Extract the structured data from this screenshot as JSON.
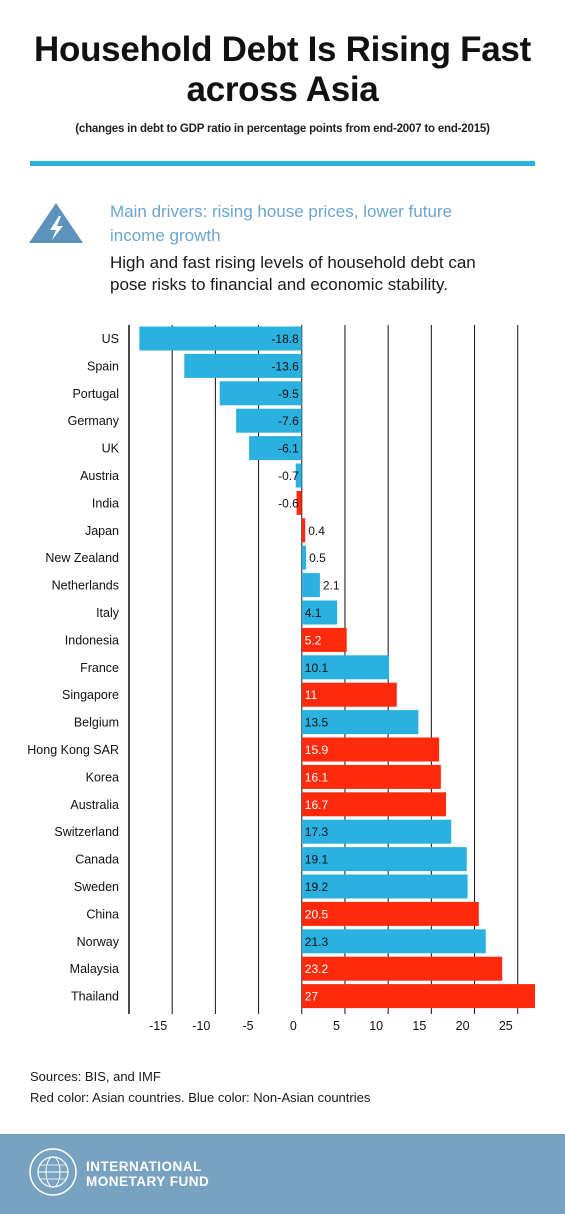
{
  "header": {
    "title_line1": "Household Debt Is Rising Fast",
    "title_line2": "across Asia",
    "subtitle": "(changes in debt to GDP ratio in percentage points from end-2007 to end-2015)"
  },
  "callout": {
    "icon": "warning-lightning-icon",
    "driver_line1": "Main drivers: rising house prices, lower future",
    "driver_line2": "income growth",
    "desc_line1": "High and fast rising levels of household debt  can",
    "desc_line2": "pose risks to financial and economic stability."
  },
  "colors": {
    "accent": "#2ab1e0",
    "asian": "#ff2a0c",
    "non_asian": "#2ab1e0",
    "driver_text": "#6ba6cf",
    "footer": "#77a3c0"
  },
  "chart_data": {
    "type": "bar",
    "orientation": "horizontal",
    "categories": [
      "US",
      "Spain",
      "Portugal",
      "Germany",
      "UK",
      "Austria",
      "India",
      "Japan",
      "New Zealand",
      "Netherlands",
      "Italy",
      "Indonesia",
      "France",
      "Singapore",
      "Belgium",
      "Hong Kong SAR",
      "Korea",
      "Australia",
      "Switzerland",
      "Canada",
      "Sweden",
      "China",
      "Norway",
      "Malaysia",
      "Thailand"
    ],
    "values": [
      -18.8,
      -13.6,
      -9.5,
      -7.6,
      -6.1,
      -0.7,
      -0.6,
      0.4,
      0.5,
      2.1,
      4.1,
      5.2,
      10.1,
      11,
      13.5,
      15.9,
      16.1,
      16.7,
      17.3,
      19.1,
      19.2,
      20.5,
      21.3,
      23.2,
      27
    ],
    "value_labels": [
      "-18.8",
      "-13.6",
      "-9.5",
      "-7.6",
      "-6.1",
      "-0.7",
      "-0.6",
      "0.4",
      "0.5",
      "2.1",
      "4.1",
      "5.2",
      "10.1",
      "11",
      "13.5",
      "15.9",
      "16.1",
      "16.7",
      "17.3",
      "19.1",
      "19.2",
      "20.5",
      "21.3",
      "23.2",
      "27"
    ],
    "group": [
      "non-asian",
      "non-asian",
      "non-asian",
      "non-asian",
      "non-asian",
      "non-asian",
      "asian",
      "asian",
      "non-asian",
      "non-asian",
      "non-asian",
      "asian",
      "non-asian",
      "asian",
      "non-asian",
      "asian",
      "asian",
      "asian",
      "non-asian",
      "non-asian",
      "non-asian",
      "asian",
      "non-asian",
      "asian",
      "asian"
    ],
    "xticks": [
      -15,
      -10,
      -5,
      0,
      5,
      10,
      15,
      20,
      25
    ],
    "xlim": [
      -20,
      27
    ],
    "grid": "vertical",
    "title": "",
    "xlabel": "",
    "ylabel": ""
  },
  "notes": {
    "sources": "Sources: BIS, and IMF",
    "color_note": "Red color: Asian countries. Blue color: Non-Asian countries"
  },
  "footer": {
    "logo_icon": "imf-seal-logo",
    "org_line1": "INTERNATIONAL",
    "org_line2": "MONETARY FUND"
  }
}
